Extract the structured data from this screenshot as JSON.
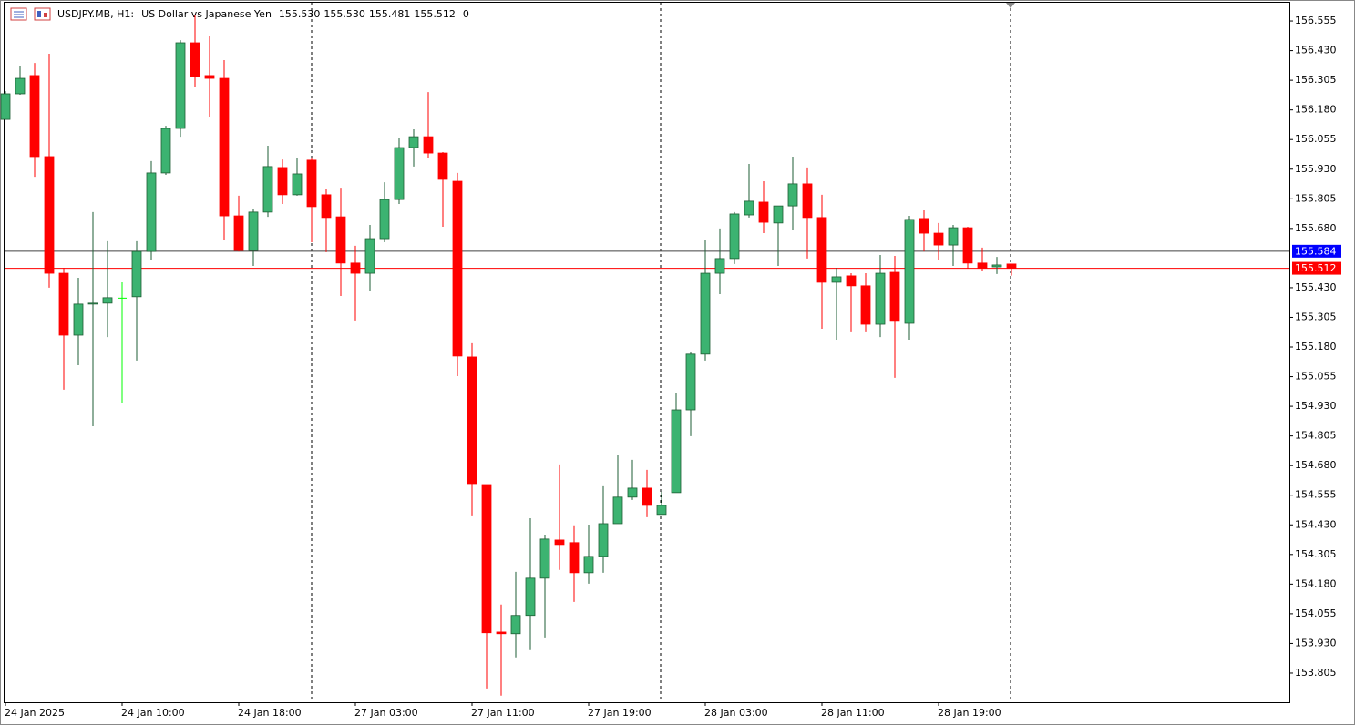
{
  "chart_data": {
    "type": "candlestick",
    "title": "USDJPY.MB, H1:",
    "subtitle": "US Dollar vs Japanese Yen",
    "header_values": [
      "155.530",
      "155.530",
      "155.481",
      "155.512"
    ],
    "tick_volume": 0,
    "categories": [
      "24 Jan 2025",
      null,
      null,
      null,
      null,
      null,
      null,
      null,
      "24 Jan 10:00",
      null,
      null,
      null,
      null,
      null,
      null,
      null,
      "24 Jan 18:00",
      null,
      null,
      null,
      null,
      null,
      null,
      null,
      "27 Jan 03:00",
      null,
      null,
      null,
      null,
      null,
      null,
      null,
      "27 Jan 11:00",
      null,
      null,
      null,
      null,
      null,
      null,
      null,
      "27 Jan 19:00",
      null,
      null,
      null,
      null,
      null,
      null,
      null,
      "28 Jan 03:00",
      null,
      null,
      null,
      null,
      null,
      null,
      null,
      "28 Jan 11:00",
      null,
      null,
      null,
      null,
      null,
      null,
      null,
      "28 Jan 19:00",
      null,
      null,
      null,
      null,
      null
    ],
    "open": [
      156.14,
      156.248,
      156.325,
      155.983,
      155.491,
      155.23,
      155.361,
      155.365,
      155.388,
      155.392,
      155.583,
      155.914,
      156.102,
      156.463,
      156.325,
      156.313,
      155.733,
      155.587,
      155.749,
      155.937,
      155.822,
      155.968,
      155.822,
      155.729,
      155.534,
      155.491,
      155.637,
      155.802,
      156.021,
      156.067,
      155.998,
      155.879,
      155.138,
      154.6,
      153.978,
      153.971,
      154.048,
      154.205,
      154.366,
      154.355,
      154.228,
      154.297,
      154.435,
      154.547,
      154.585,
      154.474,
      154.566,
      154.915,
      155.15,
      155.491,
      155.553,
      155.737,
      155.791,
      155.703,
      155.775,
      155.868,
      155.726,
      155.453,
      155.48,
      155.438,
      155.276,
      155.495,
      155.28,
      155.722,
      155.66,
      155.61,
      155.683,
      155.534,
      155.518,
      155.53
    ],
    "high": [
      156.259,
      156.363,
      156.378,
      156.417,
      155.514,
      155.472,
      155.749,
      155.626,
      155.453,
      155.626,
      155.964,
      156.113,
      156.474,
      156.578,
      156.49,
      156.39,
      155.818,
      155.76,
      156.029,
      155.971,
      155.979,
      155.975,
      155.845,
      155.852,
      155.607,
      155.695,
      155.875,
      156.06,
      156.098,
      156.255,
      156.002,
      155.914,
      155.196,
      154.6,
      154.094,
      154.232,
      154.458,
      154.389,
      154.685,
      154.428,
      154.431,
      154.593,
      154.723,
      154.704,
      154.662,
      154.57,
      154.985,
      155.157,
      155.633,
      155.68,
      155.749,
      155.952,
      155.879,
      155.775,
      155.983,
      155.937,
      155.822,
      155.514,
      155.491,
      155.491,
      155.568,
      155.564,
      155.733,
      155.756,
      155.703,
      155.695,
      155.687,
      155.599,
      155.56,
      155.53
    ],
    "low": [
      156.14,
      156.244,
      155.898,
      155.43,
      155.0,
      155.103,
      154.846,
      155.222,
      154.942,
      155.123,
      155.549,
      155.906,
      156.067,
      156.275,
      156.148,
      155.633,
      155.583,
      155.522,
      155.729,
      155.783,
      155.818,
      155.622,
      155.58,
      155.395,
      155.292,
      155.418,
      155.622,
      155.783,
      155.941,
      155.979,
      155.687,
      155.057,
      154.47,
      153.74,
      153.71,
      153.871,
      153.902,
      153.955,
      154.24,
      154.105,
      154.182,
      154.228,
      154.435,
      154.535,
      154.462,
      154.474,
      154.566,
      154.804,
      155.123,
      155.403,
      155.53,
      155.726,
      155.66,
      155.522,
      155.672,
      155.553,
      155.257,
      155.211,
      155.246,
      155.246,
      155.222,
      155.05,
      155.211,
      155.583,
      155.549,
      155.522,
      155.511,
      155.499,
      155.488,
      155.481
    ],
    "close": [
      156.248,
      156.313,
      155.983,
      155.491,
      155.23,
      155.361,
      155.365,
      155.388,
      155.388,
      155.583,
      155.914,
      156.102,
      156.463,
      156.321,
      156.313,
      155.733,
      155.587,
      155.749,
      155.941,
      155.822,
      155.91,
      155.772,
      155.726,
      155.534,
      155.491,
      155.637,
      155.802,
      156.021,
      156.067,
      155.998,
      155.887,
      155.142,
      154.604,
      153.975,
      153.971,
      154.048,
      154.205,
      154.37,
      154.347,
      154.228,
      154.297,
      154.435,
      154.547,
      154.585,
      154.512,
      154.512,
      154.915,
      155.15,
      155.491,
      155.553,
      155.741,
      155.795,
      155.706,
      155.775,
      155.868,
      155.726,
      155.453,
      155.476,
      155.438,
      155.276,
      155.491,
      155.292,
      155.718,
      155.66,
      155.61,
      155.683,
      155.534,
      155.514,
      155.526,
      155.512
    ],
    "up_color": "#3cb371",
    "down_color": "#ff0000",
    "doji_color": "#00ff00",
    "ylim": [
      153.682,
      156.632
    ],
    "yticks": [
      156.555,
      {
        "value": 156.43,
        "label": "156.430"
      },
      156.305,
      {
        "value": 156.18,
        "label": "156.180"
      },
      156.055,
      {
        "value": 155.93,
        "label": "155.930"
      },
      155.805,
      {
        "value": 155.68,
        "label": "155.680"
      },
      {
        "value": 155.43,
        "label": "155.430"
      },
      155.305,
      {
        "value": 155.18,
        "label": "155.180"
      },
      155.055,
      {
        "value": 154.93,
        "label": "154.930"
      },
      154.805,
      {
        "value": 154.68,
        "label": "154.680"
      },
      154.555,
      {
        "value": 154.43,
        "label": "154.430"
      },
      154.305,
      {
        "value": 154.18,
        "label": "154.180"
      },
      154.055,
      {
        "value": 153.93,
        "label": "153.930"
      },
      153.805
    ],
    "ask": 155.584,
    "ask_color": "#0000ff",
    "bid": 155.512,
    "bid_color": "#ff0000"
  }
}
